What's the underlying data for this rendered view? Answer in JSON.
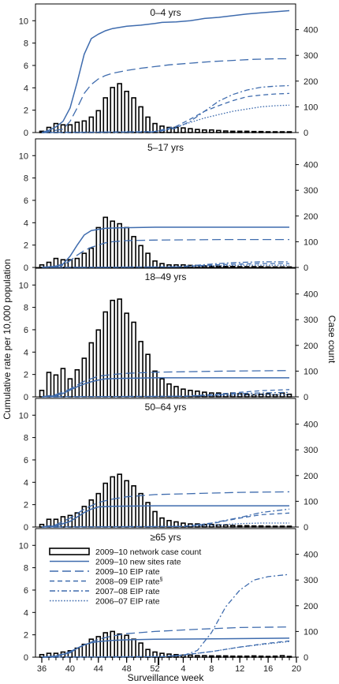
{
  "chart_data": {
    "type": "bar+line",
    "ylabel_left": "Cumulative rate per 10,000 population",
    "ylabel_right": "Case count",
    "xlabel": "Surveillance week",
    "x_ticks": [
      36,
      40,
      44,
      48,
      52,
      4,
      8,
      12,
      16,
      20
    ],
    "left_ticks": [
      0,
      2,
      4,
      6,
      8,
      10
    ],
    "right_ticks": [
      0,
      100,
      200,
      300,
      400
    ],
    "ylim_left": [
      0,
      11.5
    ],
    "ylim_right": [
      0,
      500
    ],
    "legend": {
      "placement": "inside last panel, top-left",
      "entries": [
        {
          "label": "2009–10 network case count",
          "style": "bar"
        },
        {
          "label": "2009–10 new sites rate",
          "style": "solid"
        },
        {
          "label": "2009–10 EIP rate",
          "style": "longdash"
        },
        {
          "label": "2008–09 EIP rate",
          "sup": "§",
          "style": "dash"
        },
        {
          "label": "2007–08 EIP rate",
          "style": "dashdot"
        },
        {
          "label": "2006–07 EIP rate",
          "style": "dot"
        }
      ]
    },
    "panels": [
      {
        "title": "0–4 yrs",
        "bars": [
          5,
          20,
          35,
          30,
          30,
          40,
          45,
          60,
          85,
          135,
          175,
          190,
          160,
          135,
          100,
          60,
          35,
          25,
          20,
          20,
          18,
          15,
          12,
          10,
          10,
          8,
          6,
          5,
          5,
          5,
          4,
          4,
          3,
          3,
          3,
          3,
          2,
          2,
          2,
          2,
          2,
          2
        ],
        "new_sites": [
          [
            36,
            0
          ],
          [
            37,
            0.2
          ],
          [
            38,
            0.5
          ],
          [
            39,
            1.0
          ],
          [
            40,
            2.2
          ],
          [
            41,
            4.5
          ],
          [
            42,
            7.0
          ],
          [
            43,
            8.4
          ],
          [
            44,
            8.8
          ],
          [
            45,
            9.1
          ],
          [
            46,
            9.3
          ],
          [
            48,
            9.5
          ],
          [
            50,
            9.6
          ],
          [
            52,
            9.75
          ],
          [
            1,
            9.85
          ],
          [
            3,
            9.9
          ],
          [
            5,
            10.0
          ],
          [
            7,
            10.2
          ],
          [
            9,
            10.3
          ],
          [
            11,
            10.45
          ],
          [
            13,
            10.6
          ],
          [
            15,
            10.7
          ],
          [
            17,
            10.8
          ],
          [
            19,
            10.9
          ]
        ],
        "eip_2009": [
          [
            36,
            0
          ],
          [
            39,
            0.3
          ],
          [
            40,
            1.0
          ],
          [
            41,
            2.2
          ],
          [
            42,
            3.5
          ],
          [
            43,
            4.3
          ],
          [
            44,
            4.8
          ],
          [
            45,
            5.1
          ],
          [
            46,
            5.3
          ],
          [
            48,
            5.55
          ],
          [
            50,
            5.75
          ],
          [
            52,
            5.9
          ],
          [
            2,
            6.05
          ],
          [
            5,
            6.2
          ],
          [
            8,
            6.35
          ],
          [
            11,
            6.45
          ],
          [
            14,
            6.55
          ],
          [
            17,
            6.6
          ],
          [
            19,
            6.6
          ]
        ],
        "eip_2008": [
          [
            36,
            0
          ],
          [
            50,
            0.05
          ],
          [
            52,
            0.1
          ],
          [
            1,
            0.25
          ],
          [
            3,
            0.55
          ],
          [
            5,
            1.2
          ],
          [
            7,
            1.9
          ],
          [
            9,
            2.4
          ],
          [
            11,
            2.85
          ],
          [
            13,
            3.2
          ],
          [
            15,
            3.35
          ],
          [
            17,
            3.45
          ],
          [
            19,
            3.5
          ]
        ],
        "eip_2007": [
          [
            36,
            0
          ],
          [
            52,
            0.05
          ],
          [
            1,
            0.15
          ],
          [
            3,
            0.4
          ],
          [
            5,
            1.0
          ],
          [
            7,
            1.9
          ],
          [
            9,
            2.8
          ],
          [
            11,
            3.4
          ],
          [
            13,
            3.8
          ],
          [
            15,
            4.05
          ],
          [
            17,
            4.15
          ],
          [
            19,
            4.2
          ]
        ],
        "eip_2006": [
          [
            36,
            0
          ],
          [
            52,
            0.1
          ],
          [
            1,
            0.2
          ],
          [
            3,
            0.5
          ],
          [
            5,
            0.9
          ],
          [
            7,
            1.3
          ],
          [
            9,
            1.6
          ],
          [
            11,
            1.9
          ],
          [
            13,
            2.1
          ],
          [
            15,
            2.3
          ],
          [
            17,
            2.4
          ],
          [
            19,
            2.45
          ]
        ]
      },
      {
        "title": "5–17 yrs",
        "bars": [
          10,
          20,
          35,
          30,
          30,
          35,
          55,
          75,
          155,
          195,
          180,
          170,
          155,
          120,
          85,
          55,
          25,
          15,
          10,
          10,
          10,
          8,
          8,
          6,
          5,
          5,
          4,
          4,
          3,
          3,
          3,
          3,
          2,
          2,
          2,
          2,
          2,
          2,
          2,
          2,
          2,
          2
        ],
        "new_sites": [
          [
            36,
            0
          ],
          [
            38,
            0.1
          ],
          [
            39,
            0.3
          ],
          [
            40,
            1.0
          ],
          [
            41,
            2.0
          ],
          [
            42,
            2.9
          ],
          [
            43,
            3.3
          ],
          [
            44,
            3.4
          ],
          [
            45,
            3.5
          ],
          [
            47,
            3.55
          ],
          [
            52,
            3.6
          ],
          [
            10,
            3.6
          ],
          [
            19,
            3.6
          ]
        ],
        "eip_2009": [
          [
            36,
            0
          ],
          [
            39,
            0.2
          ],
          [
            40,
            0.6
          ],
          [
            41,
            1.1
          ],
          [
            42,
            1.5
          ],
          [
            43,
            1.8
          ],
          [
            44,
            2.0
          ],
          [
            45,
            2.2
          ],
          [
            46,
            2.3
          ],
          [
            48,
            2.4
          ],
          [
            52,
            2.45
          ],
          [
            10,
            2.5
          ],
          [
            19,
            2.5
          ]
        ],
        "eip_2008": [
          [
            36,
            0
          ],
          [
            3,
            0.05
          ],
          [
            6,
            0.15
          ],
          [
            9,
            0.25
          ],
          [
            12,
            0.3
          ],
          [
            15,
            0.35
          ],
          [
            19,
            0.35
          ]
        ],
        "eip_2007": [
          [
            36,
            0
          ],
          [
            3,
            0.05
          ],
          [
            6,
            0.2
          ],
          [
            9,
            0.35
          ],
          [
            12,
            0.45
          ],
          [
            15,
            0.5
          ],
          [
            19,
            0.5
          ]
        ],
        "eip_2006": [
          [
            36,
            0
          ],
          [
            3,
            0.05
          ],
          [
            6,
            0.1
          ],
          [
            9,
            0.15
          ],
          [
            12,
            0.2
          ],
          [
            15,
            0.2
          ],
          [
            19,
            0.2
          ]
        ]
      },
      {
        "title": "18–49 yrs",
        "bars": [
          25,
          95,
          85,
          110,
          70,
          105,
          150,
          210,
          260,
          330,
          375,
          380,
          325,
          290,
          215,
          165,
          100,
          70,
          50,
          40,
          30,
          25,
          22,
          18,
          15,
          15,
          12,
          15,
          12,
          10,
          8,
          10,
          12,
          8,
          15,
          10,
          8,
          6,
          5,
          5,
          4,
          4
        ],
        "new_sites": [
          [
            36,
            0
          ],
          [
            38,
            0.1
          ],
          [
            39,
            0.3
          ],
          [
            40,
            0.6
          ],
          [
            41,
            0.9
          ],
          [
            42,
            1.15
          ],
          [
            43,
            1.35
          ],
          [
            44,
            1.5
          ],
          [
            45,
            1.6
          ],
          [
            47,
            1.65
          ],
          [
            52,
            1.7
          ],
          [
            19,
            1.7
          ]
        ],
        "eip_2009": [
          [
            36,
            0
          ],
          [
            38,
            0.2
          ],
          [
            40,
            0.7
          ],
          [
            42,
            1.4
          ],
          [
            44,
            1.85
          ],
          [
            46,
            2.0
          ],
          [
            48,
            2.1
          ],
          [
            52,
            2.2
          ],
          [
            10,
            2.3
          ],
          [
            19,
            2.35
          ]
        ],
        "eip_2008": [
          [
            36,
            0
          ],
          [
            4,
            0.05
          ],
          [
            8,
            0.2
          ],
          [
            12,
            0.4
          ],
          [
            15,
            0.55
          ],
          [
            19,
            0.65
          ]
        ],
        "eip_2007": [
          [
            36,
            0
          ],
          [
            4,
            0.05
          ],
          [
            8,
            0.15
          ],
          [
            12,
            0.3
          ],
          [
            15,
            0.35
          ],
          [
            19,
            0.4
          ]
        ],
        "eip_2006": [
          [
            36,
            0
          ],
          [
            4,
            0.05
          ],
          [
            8,
            0.1
          ],
          [
            12,
            0.15
          ],
          [
            15,
            0.2
          ],
          [
            19,
            0.2
          ]
        ]
      },
      {
        "title": "50–64 yrs",
        "bars": [
          10,
          30,
          30,
          40,
          45,
          55,
          80,
          105,
          130,
          170,
          195,
          205,
          180,
          160,
          130,
          95,
          60,
          35,
          25,
          20,
          15,
          12,
          12,
          10,
          10,
          8,
          8,
          6,
          5,
          5,
          4,
          4,
          3,
          3,
          3,
          3,
          2,
          2,
          2,
          2,
          2,
          2
        ],
        "new_sites": [
          [
            36,
            0
          ],
          [
            38,
            0.1
          ],
          [
            40,
            0.5
          ],
          [
            41,
            0.9
          ],
          [
            42,
            1.3
          ],
          [
            43,
            1.6
          ],
          [
            44,
            1.8
          ],
          [
            46,
            1.85
          ],
          [
            52,
            1.9
          ],
          [
            19,
            1.9
          ]
        ],
        "eip_2009": [
          [
            36,
            0
          ],
          [
            38,
            0.2
          ],
          [
            40,
            0.8
          ],
          [
            42,
            1.6
          ],
          [
            44,
            2.2
          ],
          [
            46,
            2.5
          ],
          [
            48,
            2.7
          ],
          [
            52,
            2.9
          ],
          [
            6,
            3.0
          ],
          [
            12,
            3.1
          ],
          [
            19,
            3.15
          ]
        ],
        "eip_2008": [
          [
            36,
            0
          ],
          [
            4,
            0.05
          ],
          [
            8,
            0.3
          ],
          [
            12,
            0.8
          ],
          [
            15,
            1.1
          ],
          [
            19,
            1.25
          ]
        ],
        "eip_2007": [
          [
            36,
            0
          ],
          [
            4,
            0.05
          ],
          [
            8,
            0.35
          ],
          [
            12,
            0.85
          ],
          [
            15,
            1.3
          ],
          [
            19,
            1.6
          ]
        ],
        "eip_2006": [
          [
            36,
            0
          ],
          [
            4,
            0.05
          ],
          [
            8,
            0.15
          ],
          [
            12,
            0.3
          ],
          [
            15,
            0.35
          ],
          [
            19,
            0.35
          ]
        ]
      },
      {
        "title": "≥65 yrs",
        "bars": [
          10,
          15,
          15,
          20,
          25,
          35,
          50,
          70,
          80,
          95,
          100,
          90,
          85,
          70,
          55,
          30,
          20,
          15,
          12,
          10,
          8,
          8,
          6,
          6,
          5,
          5,
          5,
          4,
          4,
          4,
          5,
          4,
          3,
          4,
          6,
          3,
          3,
          2,
          2,
          2,
          2,
          2
        ],
        "new_sites": [
          [
            36,
            0
          ],
          [
            38,
            0.1
          ],
          [
            40,
            0.4
          ],
          [
            41,
            0.8
          ],
          [
            42,
            1.1
          ],
          [
            43,
            1.3
          ],
          [
            44,
            1.4
          ],
          [
            46,
            1.5
          ],
          [
            48,
            1.55
          ],
          [
            52,
            1.6
          ],
          [
            10,
            1.65
          ],
          [
            19,
            1.7
          ]
        ],
        "eip_2009": [
          [
            36,
            0
          ],
          [
            38,
            0.1
          ],
          [
            40,
            0.5
          ],
          [
            42,
            1.1
          ],
          [
            44,
            1.6
          ],
          [
            46,
            1.9
          ],
          [
            48,
            2.1
          ],
          [
            52,
            2.3
          ],
          [
            6,
            2.5
          ],
          [
            12,
            2.65
          ],
          [
            19,
            2.7
          ]
        ],
        "eip_2008": [
          [
            36,
            0
          ],
          [
            1,
            0.05
          ],
          [
            4,
            0.2
          ],
          [
            8,
            0.5
          ],
          [
            12,
            0.9
          ],
          [
            16,
            1.25
          ],
          [
            19,
            1.45
          ]
        ],
        "eip_2007": [
          [
            36,
            0
          ],
          [
            1,
            0.05
          ],
          [
            4,
            0.15
          ],
          [
            6,
            0.6
          ],
          [
            8,
            2.2
          ],
          [
            10,
            4.5
          ],
          [
            12,
            6.0
          ],
          [
            14,
            6.9
          ],
          [
            16,
            7.2
          ],
          [
            19,
            7.4
          ]
        ],
        "eip_2006": [
          [
            36,
            0
          ],
          [
            1,
            0.05
          ],
          [
            4,
            0.2
          ],
          [
            8,
            0.5
          ],
          [
            12,
            0.9
          ],
          [
            16,
            1.2
          ],
          [
            19,
            1.4
          ]
        ]
      }
    ]
  }
}
